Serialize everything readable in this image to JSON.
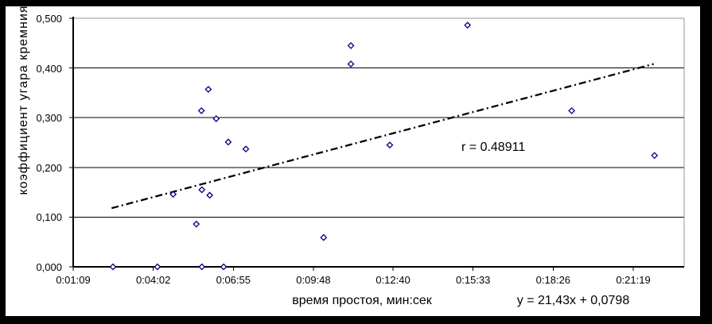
{
  "chart_data": {
    "type": "scatter",
    "title": "",
    "xlabel": "время простоя, мин:сек",
    "ylabel": "коэффициент угара кремния",
    "x_range_seconds": [
      69,
      1389
    ],
    "y_range": [
      0,
      0.5
    ],
    "grid": true,
    "legend": null,
    "x_ticks": [
      {
        "seconds": 69,
        "label": "0:01:09"
      },
      {
        "seconds": 242,
        "label": "0:04:02"
      },
      {
        "seconds": 415,
        "label": "0:06:55"
      },
      {
        "seconds": 588,
        "label": "0:09:48"
      },
      {
        "seconds": 760,
        "label": "0:12:40"
      },
      {
        "seconds": 933,
        "label": "0:15:33"
      },
      {
        "seconds": 1106,
        "label": "0:18:26"
      },
      {
        "seconds": 1279,
        "label": "0:21:19"
      }
    ],
    "y_ticks": [
      {
        "value": 0.0,
        "label": "0,000"
      },
      {
        "value": 0.1,
        "label": "0,100"
      },
      {
        "value": 0.2,
        "label": "0,200"
      },
      {
        "value": 0.3,
        "label": "0,300"
      },
      {
        "value": 0.4,
        "label": "0,400"
      },
      {
        "value": 0.5,
        "label": "0,500"
      }
    ],
    "points": [
      {
        "x_seconds": 155,
        "y": 0.0
      },
      {
        "x_seconds": 251,
        "y": 0.0
      },
      {
        "x_seconds": 285,
        "y": 0.146
      },
      {
        "x_seconds": 335,
        "y": 0.086
      },
      {
        "x_seconds": 346,
        "y": 0.314
      },
      {
        "x_seconds": 347,
        "y": 0.0
      },
      {
        "x_seconds": 347,
        "y": 0.155
      },
      {
        "x_seconds": 361,
        "y": 0.357
      },
      {
        "x_seconds": 364,
        "y": 0.144
      },
      {
        "x_seconds": 378,
        "y": 0.298
      },
      {
        "x_seconds": 394,
        "y": 0.0
      },
      {
        "x_seconds": 404,
        "y": 0.251
      },
      {
        "x_seconds": 442,
        "y": 0.237
      },
      {
        "x_seconds": 610,
        "y": 0.059
      },
      {
        "x_seconds": 669,
        "y": 0.408
      },
      {
        "x_seconds": 669,
        "y": 0.445
      },
      {
        "x_seconds": 753,
        "y": 0.245
      },
      {
        "x_seconds": 921,
        "y": 0.486
      },
      {
        "x_seconds": 1146,
        "y": 0.314
      },
      {
        "x_seconds": 1325,
        "y": 0.224
      }
    ],
    "trendline": {
      "start": {
        "x_seconds": 152,
        "y": 0.118
      },
      "end": {
        "x_seconds": 1323,
        "y": 0.408
      },
      "style": "dash-dot"
    },
    "annotations": {
      "r_label": "r = 0.48911",
      "equation_label": "y = 21,43x + 0,0798"
    },
    "marker": {
      "shape": "diamond",
      "color": "#000080",
      "fill": "#ffffff"
    },
    "colors": {
      "gridline": "#000000",
      "top_gridline": "#969696",
      "plot_right_border": "#969696",
      "axis": "#000000",
      "trendline": "#000000",
      "text": "#000000",
      "background": "#ffffff",
      "frame": "#000000"
    }
  }
}
